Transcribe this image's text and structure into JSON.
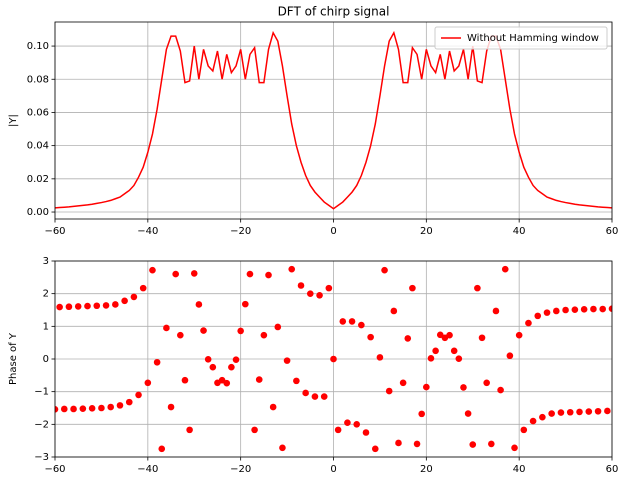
{
  "chart_data": [
    {
      "type": "line",
      "title": "DFT of chirp signal",
      "ylabel": "|Y|",
      "grid": true,
      "legend": "upper right",
      "xlim": [
        -60,
        60
      ],
      "ylim": [
        -0.0042,
        0.1145
      ],
      "xticks": [
        {
          "value": -60,
          "label": "−60"
        },
        {
          "value": -40,
          "label": "−40"
        },
        {
          "value": -20,
          "label": "−20"
        },
        0,
        20,
        40,
        60
      ],
      "yticks": [
        {
          "value": 0,
          "label": "0.00"
        },
        {
          "value": 0.02,
          "label": "0.02"
        },
        {
          "value": 0.04,
          "label": "0.04"
        },
        {
          "value": 0.06,
          "label": "0.06"
        },
        {
          "value": 0.08,
          "label": "0.08"
        },
        {
          "value": 0.1,
          "label": "0.10"
        }
      ],
      "x": [
        -60,
        -59,
        -58,
        -57,
        -56,
        -55,
        -54,
        -53,
        -52,
        -51,
        -50,
        -49,
        -48,
        -47,
        -46,
        -45,
        -44,
        -43,
        -42,
        -41,
        -40,
        -39,
        -38,
        -37,
        -36,
        -35,
        -34,
        -33,
        -32,
        -31,
        -30,
        -29,
        -28,
        -27,
        -26,
        -25,
        -24,
        -23,
        -22,
        -21,
        -20,
        -19,
        -18,
        -17,
        -16,
        -15,
        -14,
        -13,
        -12,
        -11,
        -10,
        -9,
        -8,
        -7,
        -6,
        -5,
        -4,
        -3,
        -2,
        -1,
        0,
        1,
        2,
        3,
        4,
        5,
        6,
        7,
        8,
        9,
        10,
        11,
        12,
        13,
        14,
        15,
        16,
        17,
        18,
        19,
        20,
        21,
        22,
        23,
        24,
        25,
        26,
        27,
        28,
        29,
        30,
        31,
        32,
        33,
        34,
        35,
        36,
        37,
        38,
        39,
        40,
        41,
        42,
        43,
        44,
        45,
        46,
        47,
        48,
        49,
        50,
        51,
        52,
        53,
        54,
        55,
        56,
        57,
        58,
        59,
        60
      ],
      "series": [
        {
          "name": "Without Hamming window",
          "color": "#ff0000",
          "values": [
            0.0025,
            0.0027,
            0.0029,
            0.0031,
            0.0034,
            0.0037,
            0.004,
            0.0043,
            0.0047,
            0.0052,
            0.0057,
            0.0063,
            0.007,
            0.008,
            0.009,
            0.011,
            0.013,
            0.016,
            0.021,
            0.027,
            0.036,
            0.047,
            0.062,
            0.08,
            0.098,
            0.106,
            0.106,
            0.097,
            0.078,
            0.079,
            0.1,
            0.08,
            0.098,
            0.088,
            0.085,
            0.097,
            0.08,
            0.095,
            0.084,
            0.088,
            0.098,
            0.08,
            0.095,
            0.099,
            0.078,
            0.078,
            0.098,
            0.108,
            0.103,
            0.088,
            0.07,
            0.053,
            0.04,
            0.03,
            0.022,
            0.016,
            0.012,
            0.009,
            0.006,
            0.004,
            0.002,
            0.004,
            0.006,
            0.009,
            0.012,
            0.016,
            0.022,
            0.03,
            0.04,
            0.053,
            0.07,
            0.088,
            0.103,
            0.108,
            0.098,
            0.078,
            0.078,
            0.099,
            0.095,
            0.08,
            0.098,
            0.088,
            0.084,
            0.095,
            0.08,
            0.097,
            0.085,
            0.088,
            0.098,
            0.08,
            0.1,
            0.079,
            0.078,
            0.097,
            0.106,
            0.106,
            0.098,
            0.08,
            0.062,
            0.047,
            0.036,
            0.027,
            0.021,
            0.016,
            0.013,
            0.011,
            0.009,
            0.008,
            0.007,
            0.0063,
            0.0057,
            0.0052,
            0.0047,
            0.0043,
            0.004,
            0.0037,
            0.0034,
            0.0031,
            0.0029,
            0.0027,
            0.0025
          ]
        }
      ]
    },
    {
      "type": "scatter",
      "ylabel": "Phase of Y",
      "grid": true,
      "color": "#ff0000",
      "xlim": [
        -60,
        60
      ],
      "ylim": [
        -3,
        3
      ],
      "xticks": [
        {
          "value": -60,
          "label": "−60"
        },
        {
          "value": -40,
          "label": "−40"
        },
        {
          "value": -20,
          "label": "−20"
        },
        0,
        20,
        40,
        60
      ],
      "yticks": [
        {
          "value": -3,
          "label": "−3"
        },
        {
          "value": -2,
          "label": "−2"
        },
        {
          "value": -1,
          "label": "−1"
        },
        0,
        1,
        2,
        3
      ],
      "x": [
        -60,
        -59,
        -58,
        -57,
        -56,
        -55,
        -54,
        -53,
        -52,
        -51,
        -50,
        -49,
        -48,
        -47,
        -46,
        -45,
        -44,
        -43,
        -42,
        -41,
        -40,
        -39,
        -38,
        -37,
        -36,
        -35,
        -34,
        -33,
        -32,
        -31,
        -30,
        -29,
        -28,
        -27,
        -26,
        -25,
        -24,
        -23,
        -22,
        -21,
        -20,
        -19,
        -18,
        -17,
        -16,
        -15,
        -14,
        -13,
        -12,
        -11,
        -10,
        -9,
        -8,
        -7,
        -6,
        -5,
        -4,
        -3,
        -2,
        -1,
        0,
        1,
        2,
        3,
        4,
        5,
        6,
        7,
        8,
        9,
        10,
        11,
        12,
        13,
        14,
        15,
        16,
        17,
        18,
        19,
        20,
        21,
        22,
        23,
        24,
        25,
        26,
        27,
        28,
        29,
        30,
        31,
        32,
        33,
        34,
        35,
        36,
        37,
        38,
        39,
        40,
        41,
        42,
        43,
        44,
        45,
        46,
        47,
        48,
        49,
        50,
        51,
        52,
        53,
        54,
        55,
        56,
        57,
        58,
        59,
        60
      ],
      "values": [
        -1.54,
        1.59,
        -1.53,
        1.6,
        -1.53,
        1.61,
        -1.52,
        1.62,
        -1.51,
        1.63,
        -1.5,
        1.64,
        -1.47,
        1.67,
        -1.42,
        1.78,
        -1.32,
        1.9,
        -1.1,
        2.17,
        -0.73,
        2.72,
        -0.1,
        -2.75,
        0.95,
        -1.47,
        2.6,
        0.73,
        -0.65,
        -2.17,
        2.62,
        1.67,
        0.87,
        -0.01,
        -0.25,
        -0.73,
        -0.65,
        -0.74,
        -0.25,
        -0.02,
        0.86,
        1.68,
        2.6,
        -2.17,
        -0.63,
        0.73,
        2.57,
        -1.47,
        0.98,
        -2.72,
        -0.05,
        2.75,
        -0.67,
        2.25,
        -1.04,
        2.0,
        -1.15,
        1.95,
        -1.15,
        2.17,
        0,
        -2.17,
        1.15,
        -1.95,
        1.15,
        -2.0,
        1.04,
        -2.25,
        0.67,
        -2.75,
        0.05,
        2.72,
        -0.98,
        1.47,
        -2.57,
        -0.73,
        0.63,
        2.17,
        -2.6,
        -1.68,
        -0.86,
        0.02,
        0.25,
        0.74,
        0.65,
        0.73,
        0.25,
        0.01,
        -0.87,
        -1.67,
        -2.62,
        2.17,
        0.65,
        -0.73,
        -2.6,
        1.47,
        -0.95,
        2.75,
        0.1,
        -2.72,
        0.73,
        -2.17,
        1.1,
        -1.9,
        1.32,
        -1.78,
        1.42,
        -1.67,
        1.47,
        -1.64,
        1.5,
        -1.63,
        1.51,
        -1.62,
        1.52,
        -1.61,
        1.53,
        -1.6,
        1.53,
        -1.59,
        1.54
      ]
    }
  ]
}
